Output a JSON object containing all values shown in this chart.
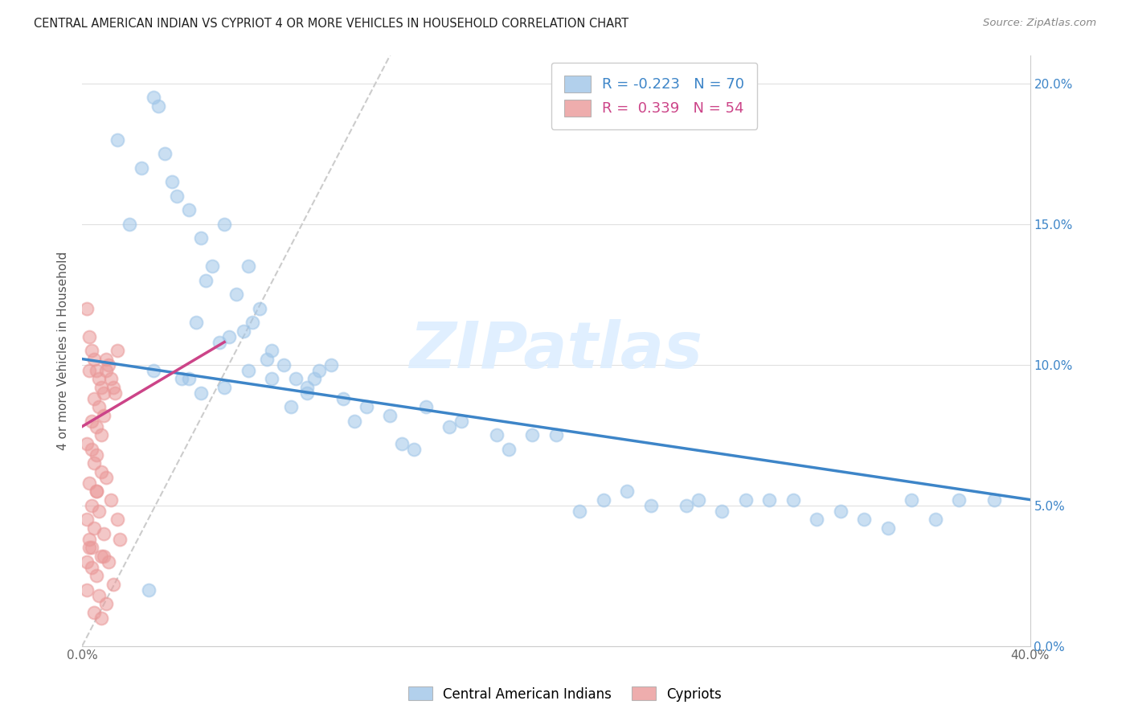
{
  "title": "CENTRAL AMERICAN INDIAN VS CYPRIOT 4 OR MORE VEHICLES IN HOUSEHOLD CORRELATION CHART",
  "source": "Source: ZipAtlas.com",
  "ylabel": "4 or more Vehicles in Household",
  "watermark": "ZIPatlas",
  "legend_blue_r": "-0.223",
  "legend_blue_n": "70",
  "legend_pink_r": "0.339",
  "legend_pink_n": "54",
  "legend_blue_label": "Central American Indians",
  "legend_pink_label": "Cypriots",
  "blue_x": [
    3.0,
    3.2,
    1.5,
    2.5,
    3.8,
    4.5,
    2.0,
    3.5,
    4.0,
    5.0,
    5.5,
    6.0,
    4.8,
    6.5,
    7.0,
    6.8,
    7.5,
    8.0,
    5.2,
    6.2,
    7.2,
    8.5,
    9.0,
    5.8,
    7.8,
    9.5,
    8.8,
    10.0,
    11.0,
    9.8,
    10.5,
    4.2,
    11.5,
    12.0,
    13.0,
    14.5,
    16.0,
    17.5,
    19.0,
    14.0,
    20.0,
    15.5,
    22.0,
    24.0,
    23.0,
    26.0,
    28.0,
    30.0,
    32.0,
    35.0,
    37.0,
    38.5,
    29.0,
    36.0,
    25.5,
    33.0,
    27.0,
    31.0,
    34.0,
    21.0,
    18.0,
    13.5,
    6.0,
    5.0,
    8.0,
    3.0,
    4.5,
    7.0,
    9.5,
    2.8
  ],
  "blue_y": [
    19.5,
    19.2,
    18.0,
    17.0,
    16.5,
    15.5,
    15.0,
    17.5,
    16.0,
    14.5,
    13.5,
    15.0,
    11.5,
    12.5,
    13.5,
    11.2,
    12.0,
    10.5,
    13.0,
    11.0,
    11.5,
    10.0,
    9.5,
    10.8,
    10.2,
    9.0,
    8.5,
    9.8,
    8.8,
    9.5,
    10.0,
    9.5,
    8.0,
    8.5,
    8.2,
    8.5,
    8.0,
    7.5,
    7.5,
    7.0,
    7.5,
    7.8,
    5.2,
    5.0,
    5.5,
    5.2,
    5.2,
    5.2,
    4.8,
    5.2,
    5.2,
    5.2,
    5.2,
    4.5,
    5.0,
    4.5,
    4.8,
    4.5,
    4.2,
    4.8,
    7.0,
    7.2,
    9.2,
    9.0,
    9.5,
    9.8,
    9.5,
    9.8,
    9.2,
    2.0
  ],
  "pink_x": [
    0.2,
    0.3,
    0.4,
    0.5,
    0.6,
    0.7,
    0.8,
    0.9,
    1.0,
    0.3,
    0.5,
    0.7,
    0.9,
    1.1,
    0.4,
    0.6,
    0.8,
    1.2,
    0.2,
    0.4,
    0.6,
    1.0,
    1.3,
    0.5,
    0.8,
    1.5,
    1.0,
    0.3,
    0.6,
    1.2,
    0.4,
    0.7,
    1.4,
    0.2,
    0.5,
    0.9,
    1.6,
    0.3,
    0.8,
    1.1,
    0.4,
    0.6,
    1.3,
    0.2,
    0.7,
    1.0,
    0.5,
    0.8,
    0.3,
    1.5,
    0.4,
    0.9,
    0.6,
    0.2
  ],
  "pink_y": [
    12.0,
    11.0,
    10.5,
    10.2,
    9.8,
    9.5,
    9.2,
    9.0,
    10.2,
    9.8,
    8.8,
    8.5,
    8.2,
    10.0,
    8.0,
    7.8,
    7.5,
    9.5,
    7.2,
    7.0,
    6.8,
    9.8,
    9.2,
    6.5,
    6.2,
    10.5,
    6.0,
    5.8,
    5.5,
    5.2,
    5.0,
    4.8,
    9.0,
    4.5,
    4.2,
    4.0,
    3.8,
    3.5,
    3.2,
    3.0,
    2.8,
    2.5,
    2.2,
    2.0,
    1.8,
    1.5,
    1.2,
    1.0,
    3.8,
    4.5,
    3.5,
    3.2,
    5.5,
    3.0
  ],
  "xlim": [
    0,
    40
  ],
  "ylim": [
    0,
    21
  ],
  "bg_color": "#ffffff",
  "blue_color": "#9fc5e8",
  "pink_color": "#ea9999",
  "blue_line_color": "#3d85c8",
  "pink_line_color": "#cc4488",
  "diag_line_color": "#cccccc",
  "grid_color": "#e0e0e0",
  "blue_line_x0": 0,
  "blue_line_y0": 10.2,
  "blue_line_x1": 40,
  "blue_line_y1": 5.2,
  "pink_line_x0": 0,
  "pink_line_y0": 7.8,
  "pink_line_x1": 6.0,
  "pink_line_y1": 10.8,
  "diag_x0": 0,
  "diag_y0": 0,
  "diag_x1": 13,
  "diag_y1": 21
}
